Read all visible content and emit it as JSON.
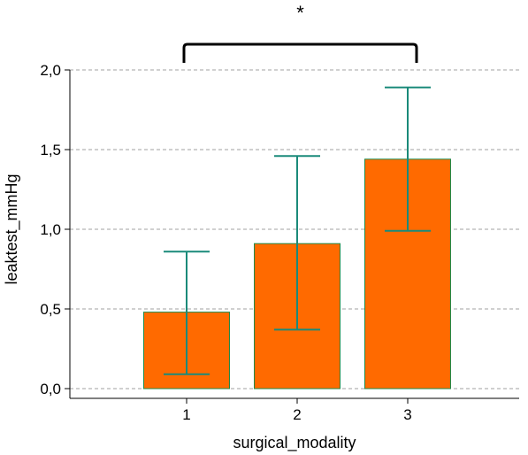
{
  "chart_data": {
    "type": "bar",
    "categories": [
      "1",
      "2",
      "3"
    ],
    "values": [
      0.48,
      0.91,
      1.44
    ],
    "error_bars": {
      "lower": [
        0.09,
        0.37,
        0.99
      ],
      "upper": [
        0.86,
        1.46,
        1.89
      ]
    },
    "xlabel": "surgical_modality",
    "ylabel": "leaktest_mmHg",
    "ylim": [
      0,
      2.0
    ],
    "yticks": [
      "0,0",
      "0,5",
      "1,0",
      "1,5",
      "2,0"
    ],
    "ytick_values": [
      0,
      0.5,
      1.0,
      1.5,
      2.0
    ],
    "grid": true,
    "legend": "none",
    "significance": {
      "label": "*",
      "from_category": "1",
      "to_category": "3"
    },
    "colors": {
      "bar_fill": "#ff6a00",
      "bar_edge": "#1f8a4a",
      "error_bar": "#1a8a7a",
      "grid": "#a0a0a0",
      "axis": "#000000"
    }
  }
}
